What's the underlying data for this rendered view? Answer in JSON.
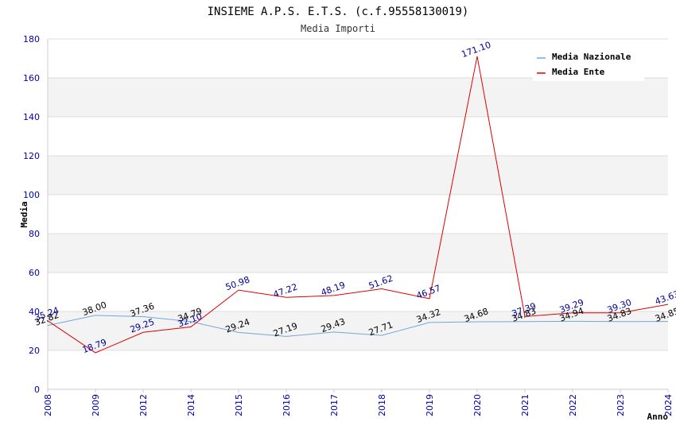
{
  "chart_data": {
    "type": "line",
    "title": "INSIEME A.P.S. E.T.S. (c.f.95558130019)",
    "subtitle": "Media Importi",
    "xlabel": "Anno",
    "ylabel": "Media",
    "ylim": [
      0,
      180
    ],
    "yticks": [
      0,
      20,
      40,
      60,
      80,
      100,
      120,
      140,
      160,
      180
    ],
    "grid": true,
    "legend_position": "top-right",
    "categories": [
      "2008",
      "2009",
      "2012",
      "2014",
      "2015",
      "2016",
      "2017",
      "2018",
      "2019",
      "2020",
      "2021",
      "2022",
      "2023",
      "2024"
    ],
    "series": [
      {
        "name": "Media Nazionale",
        "color": "#6fa8dc",
        "label_color": "#000000",
        "values": [
          32.82,
          38.0,
          37.36,
          34.79,
          29.24,
          27.19,
          29.43,
          27.71,
          34.32,
          34.68,
          34.83,
          34.94,
          34.83,
          34.85
        ],
        "labels": [
          "32.82",
          "38.00",
          "37.36",
          "34.79",
          "29.24",
          "27.19",
          "29.43",
          "27.71",
          "34.32",
          "34.68",
          "34.83",
          "34.94",
          "34.83",
          "34.85"
        ]
      },
      {
        "name": "Media Ente",
        "color": "#dd0000",
        "label_color": "#000099",
        "values": [
          35.24,
          18.79,
          29.25,
          32.1,
          50.98,
          47.22,
          48.19,
          51.62,
          46.57,
          171.1,
          37.39,
          39.29,
          39.3,
          43.63
        ],
        "labels": [
          "35.24",
          "18.79",
          "29.25",
          "32.10",
          "50.98",
          "47.22",
          "48.19",
          "51.62",
          "46.57",
          "171.10",
          "37.39",
          "39.29",
          "39.30",
          "43.63"
        ]
      }
    ]
  }
}
